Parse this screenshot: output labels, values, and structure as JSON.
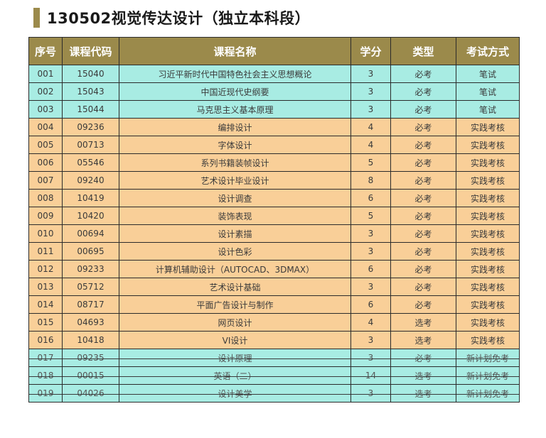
{
  "header": {
    "title": "130502视觉传达设计（独立本科段）"
  },
  "colors": {
    "header_bg": "#9b8a4b",
    "band_cyan": "#a8ece3",
    "band_orange": "#f9cf98"
  },
  "table": {
    "columns": [
      "序号",
      "课程代码",
      "课程名称",
      "学分",
      "类型",
      "考试方式"
    ],
    "rows": [
      {
        "no": "001",
        "code": "15040",
        "name": "习近平新时代中国特色社会主义思想概论",
        "credit": "3",
        "type": "必考",
        "exam": "笔试",
        "band": "cyan",
        "struck": false
      },
      {
        "no": "002",
        "code": "15043",
        "name": "中国近现代史纲要",
        "credit": "3",
        "type": "必考",
        "exam": "笔试",
        "band": "cyan",
        "struck": false
      },
      {
        "no": "003",
        "code": "15044",
        "name": "马克思主义基本原理",
        "credit": "3",
        "type": "必考",
        "exam": "笔试",
        "band": "cyan",
        "struck": false
      },
      {
        "no": "004",
        "code": "09236",
        "name": "编排设计",
        "credit": "4",
        "type": "必考",
        "exam": "实践考核",
        "band": "orange",
        "struck": false
      },
      {
        "no": "005",
        "code": "00713",
        "name": "字体设计",
        "credit": "4",
        "type": "必考",
        "exam": "实践考核",
        "band": "orange",
        "struck": false
      },
      {
        "no": "006",
        "code": "05546",
        "name": "系列书籍装帧设计",
        "credit": "5",
        "type": "必考",
        "exam": "实践考核",
        "band": "orange",
        "struck": false
      },
      {
        "no": "007",
        "code": "09240",
        "name": "艺术设计毕业设计",
        "credit": "8",
        "type": "必考",
        "exam": "实践考核",
        "band": "orange",
        "struck": false
      },
      {
        "no": "008",
        "code": "10419",
        "name": "设计调查",
        "credit": "6",
        "type": "必考",
        "exam": "实践考核",
        "band": "orange",
        "struck": false
      },
      {
        "no": "009",
        "code": "10420",
        "name": "装饰表现",
        "credit": "5",
        "type": "必考",
        "exam": "实践考核",
        "band": "orange",
        "struck": false
      },
      {
        "no": "010",
        "code": "00694",
        "name": "设计素描",
        "credit": "3",
        "type": "必考",
        "exam": "实践考核",
        "band": "orange",
        "struck": false
      },
      {
        "no": "011",
        "code": "00695",
        "name": "设计色彩",
        "credit": "3",
        "type": "必考",
        "exam": "实践考核",
        "band": "orange",
        "struck": false
      },
      {
        "no": "012",
        "code": "09233",
        "name": "计算机辅助设计（AUTOCAD、3DMAX）",
        "credit": "6",
        "type": "必考",
        "exam": "实践考核",
        "band": "orange",
        "struck": false
      },
      {
        "no": "013",
        "code": "05712",
        "name": "艺术设计基础",
        "credit": "3",
        "type": "必考",
        "exam": "实践考核",
        "band": "orange",
        "struck": false
      },
      {
        "no": "014",
        "code": "08717",
        "name": "平面广告设计与制作",
        "credit": "6",
        "type": "必考",
        "exam": "实践考核",
        "band": "orange",
        "struck": false
      },
      {
        "no": "015",
        "code": "04693",
        "name": "网页设计",
        "credit": "4",
        "type": "选考",
        "exam": "实践考核",
        "band": "orange",
        "struck": false
      },
      {
        "no": "016",
        "code": "10418",
        "name": "VI设计",
        "credit": "3",
        "type": "选考",
        "exam": "实践考核",
        "band": "orange",
        "struck": false
      },
      {
        "no": "017",
        "code": "09235",
        "name": "设计原理",
        "credit": "3",
        "type": "必考",
        "exam": "新计划免考",
        "band": "cyan",
        "struck": true
      },
      {
        "no": "018",
        "code": "00015",
        "name": "英语（二）",
        "credit": "14",
        "type": "选考",
        "exam": "新计划免考",
        "band": "cyan",
        "struck": true
      },
      {
        "no": "019",
        "code": "04026",
        "name": "设计美学",
        "credit": "3",
        "type": "选考",
        "exam": "新计划免考",
        "band": "cyan",
        "struck": true
      }
    ]
  }
}
